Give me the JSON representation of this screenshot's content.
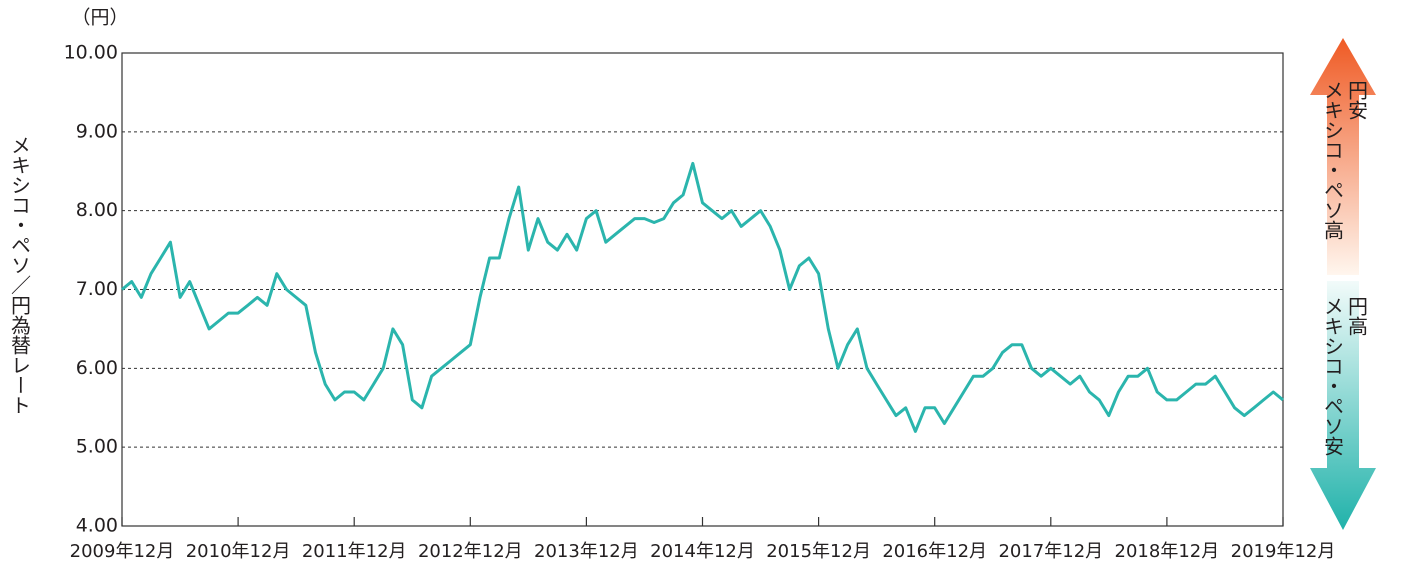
{
  "chart_data": {
    "type": "line",
    "unit_label": "（円）",
    "y_label": "メキシコ・ペソ／円為替レート",
    "annotations": {
      "up": [
        "円安",
        "メキシコ・ペソ高"
      ],
      "down": [
        "円高",
        "メキシコ・ペソ安"
      ]
    },
    "x": [
      "2009-12",
      "2010-01",
      "2010-02",
      "2010-03",
      "2010-04",
      "2010-05",
      "2010-06",
      "2010-07",
      "2010-08",
      "2010-09",
      "2010-10",
      "2010-11",
      "2010-12",
      "2011-01",
      "2011-02",
      "2011-03",
      "2011-04",
      "2011-05",
      "2011-06",
      "2011-07",
      "2011-08",
      "2011-09",
      "2011-10",
      "2011-11",
      "2011-12",
      "2012-01",
      "2012-02",
      "2012-03",
      "2012-04",
      "2012-05",
      "2012-06",
      "2012-07",
      "2012-08",
      "2012-09",
      "2012-10",
      "2012-11",
      "2012-12",
      "2013-01",
      "2013-02",
      "2013-03",
      "2013-04",
      "2013-05",
      "2013-06",
      "2013-07",
      "2013-08",
      "2013-09",
      "2013-10",
      "2013-11",
      "2013-12",
      "2014-01",
      "2014-02",
      "2014-03",
      "2014-04",
      "2014-05",
      "2014-06",
      "2014-07",
      "2014-08",
      "2014-09",
      "2014-10",
      "2014-11",
      "2014-12",
      "2015-01",
      "2015-02",
      "2015-03",
      "2015-04",
      "2015-05",
      "2015-06",
      "2015-07",
      "2015-08",
      "2015-09",
      "2015-10",
      "2015-11",
      "2015-12",
      "2016-01",
      "2016-02",
      "2016-03",
      "2016-04",
      "2016-05",
      "2016-06",
      "2016-07",
      "2016-08",
      "2016-09",
      "2016-10",
      "2016-11",
      "2016-12",
      "2017-01",
      "2017-02",
      "2017-03",
      "2017-04",
      "2017-05",
      "2017-06",
      "2017-07",
      "2017-08",
      "2017-09",
      "2017-10",
      "2017-11",
      "2017-12",
      "2018-01",
      "2018-02",
      "2018-03",
      "2018-04",
      "2018-05",
      "2018-06",
      "2018-07",
      "2018-08",
      "2018-09",
      "2018-10",
      "2018-11",
      "2018-12",
      "2019-01",
      "2019-02",
      "2019-03",
      "2019-04",
      "2019-05",
      "2019-06",
      "2019-07",
      "2019-08",
      "2019-09",
      "2019-10",
      "2019-11",
      "2019-12"
    ],
    "series": [
      {
        "color": "#2bb5ad",
        "values": [
          7.0,
          7.1,
          6.9,
          7.2,
          7.4,
          7.6,
          6.9,
          7.1,
          6.8,
          6.5,
          6.6,
          6.7,
          6.7,
          6.8,
          6.9,
          6.8,
          7.2,
          7.0,
          6.9,
          6.8,
          6.2,
          5.8,
          5.6,
          5.7,
          5.7,
          5.6,
          5.8,
          6.0,
          6.5,
          6.3,
          5.6,
          5.5,
          5.9,
          6.0,
          6.1,
          6.2,
          6.3,
          6.9,
          7.4,
          7.4,
          7.9,
          8.3,
          7.5,
          7.9,
          7.6,
          7.5,
          7.7,
          7.5,
          7.9,
          8.0,
          7.6,
          7.7,
          7.8,
          7.9,
          7.9,
          7.85,
          7.9,
          8.1,
          8.2,
          8.6,
          8.1,
          8.0,
          7.9,
          8.0,
          7.8,
          7.9,
          8.0,
          7.8,
          7.5,
          7.0,
          7.3,
          7.4,
          7.2,
          6.5,
          6.0,
          6.3,
          6.5,
          6.0,
          5.8,
          5.6,
          5.4,
          5.5,
          5.2,
          5.5,
          5.5,
          5.3,
          5.5,
          5.7,
          5.9,
          5.9,
          6.0,
          6.2,
          6.3,
          6.3,
          6.0,
          5.9,
          6.0,
          5.9,
          5.8,
          5.9,
          5.7,
          5.6,
          5.4,
          5.7,
          5.9,
          5.9,
          6.0,
          5.7,
          5.6,
          5.6,
          5.7,
          5.8,
          5.8,
          5.9,
          5.7,
          5.5,
          5.4,
          5.5,
          5.6,
          5.7,
          5.6
        ]
      }
    ],
    "xlim": [
      "2009-12",
      "2019-12"
    ],
    "xticks": [
      {
        "value": "2009-12",
        "label": "2009年12月"
      },
      {
        "value": "2010-12",
        "label": "2010年12月"
      },
      {
        "value": "2011-12",
        "label": "2011年12月"
      },
      {
        "value": "2012-12",
        "label": "2012年12月"
      },
      {
        "value": "2013-12",
        "label": "2013年12月"
      },
      {
        "value": "2014-12",
        "label": "2014年12月"
      },
      {
        "value": "2015-12",
        "label": "2015年12月"
      },
      {
        "value": "2016-12",
        "label": "2016年12月"
      },
      {
        "value": "2017-12",
        "label": "2017年12月"
      },
      {
        "value": "2018-12",
        "label": "2018年12月"
      },
      {
        "value": "2019-12",
        "label": "2019年12月"
      }
    ],
    "ylim": [
      4,
      10
    ],
    "yticks": [
      {
        "value": 4,
        "label": "4.00"
      },
      {
        "value": 5,
        "label": "5.00"
      },
      {
        "value": 6,
        "label": "6.00"
      },
      {
        "value": 7,
        "label": "7.00"
      },
      {
        "value": 8,
        "label": "8.00"
      },
      {
        "value": 9,
        "label": "9.00"
      },
      {
        "value": 10,
        "label": "10.00"
      }
    ],
    "grid": true
  }
}
